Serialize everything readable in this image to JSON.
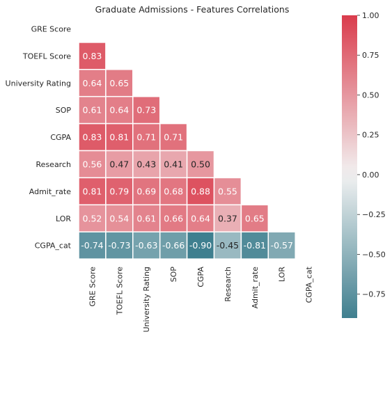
{
  "chart_data": {
    "type": "heatmap",
    "title": "Graduate Admissions - Features Correlations",
    "row_labels": [
      "GRE Score",
      "TOEFL Score",
      "University Rating",
      "SOP",
      "CGPA",
      "Research",
      "Admit_rate",
      "LOR",
      "CGPA_cat"
    ],
    "col_labels": [
      "GRE Score",
      "TOEFL Score",
      "University Rating",
      "SOP",
      "CGPA",
      "Research",
      "Admit_rate",
      "LOR",
      "CGPA_cat"
    ],
    "mask": "upper-triangle-including-diagonal",
    "matrix": [
      [
        null,
        null,
        null,
        null,
        null,
        null,
        null,
        null,
        null
      ],
      [
        0.83,
        null,
        null,
        null,
        null,
        null,
        null,
        null,
        null
      ],
      [
        0.64,
        0.65,
        null,
        null,
        null,
        null,
        null,
        null,
        null
      ],
      [
        0.61,
        0.64,
        0.73,
        null,
        null,
        null,
        null,
        null,
        null
      ],
      [
        0.83,
        0.81,
        0.71,
        0.71,
        null,
        null,
        null,
        null,
        null
      ],
      [
        0.56,
        0.47,
        0.43,
        0.41,
        0.5,
        null,
        null,
        null,
        null
      ],
      [
        0.81,
        0.79,
        0.69,
        0.68,
        0.88,
        0.55,
        null,
        null,
        null
      ],
      [
        0.52,
        0.54,
        0.61,
        0.66,
        0.64,
        0.37,
        0.65,
        null,
        null
      ],
      [
        -0.74,
        -0.73,
        -0.63,
        -0.66,
        -0.9,
        -0.45,
        -0.81,
        -0.57,
        null
      ]
    ],
    "value_labels": [
      [
        null,
        null,
        null,
        null,
        null,
        null,
        null,
        null,
        null
      ],
      [
        "0.83",
        null,
        null,
        null,
        null,
        null,
        null,
        null,
        null
      ],
      [
        "0.64",
        "0.65",
        null,
        null,
        null,
        null,
        null,
        null,
        null
      ],
      [
        "0.61",
        "0.64",
        "0.73",
        null,
        null,
        null,
        null,
        null,
        null
      ],
      [
        "0.83",
        "0.81",
        "0.71",
        "0.71",
        null,
        null,
        null,
        null,
        null
      ],
      [
        "0.56",
        "0.47",
        "0.43",
        "0.41",
        "0.50",
        null,
        null,
        null,
        null
      ],
      [
        "0.81",
        "0.79",
        "0.69",
        "0.68",
        "0.88",
        "0.55",
        null,
        null,
        null
      ],
      [
        "0.52",
        "0.54",
        "0.61",
        "0.66",
        "0.64",
        "0.37",
        "0.65",
        null,
        null
      ],
      [
        "-0.74",
        "-0.73",
        "-0.63",
        "-0.66",
        "-0.90",
        "-0.45",
        "-0.81",
        "-0.57",
        null
      ]
    ],
    "colorbar": {
      "vmin": -0.9,
      "vmax": 1.0,
      "ticks": [
        1.0,
        0.75,
        0.5,
        0.25,
        0.0,
        -0.25,
        -0.5,
        -0.75
      ],
      "tick_labels": [
        "1.00",
        "0.75",
        "0.50",
        "0.25",
        "0.00",
        "−0.25",
        "−0.50",
        "−0.75"
      ]
    },
    "colormap": {
      "negative": "#3f7f8f",
      "center": "#f2f2f2",
      "positive": "#da3c4c"
    },
    "grid": false,
    "cell_border_color": "#ffffff"
  }
}
